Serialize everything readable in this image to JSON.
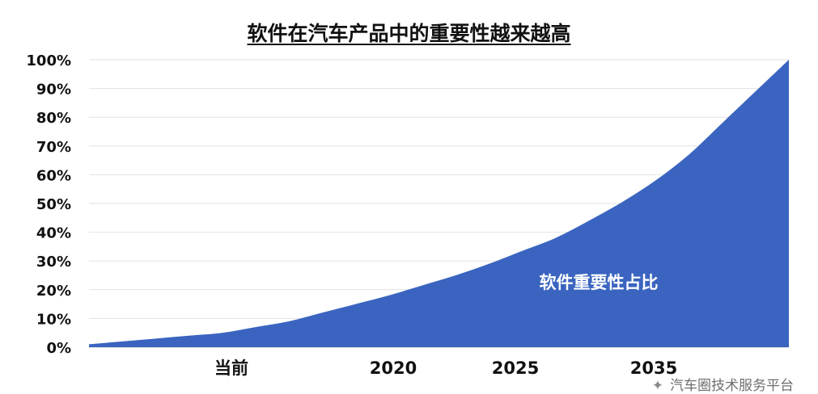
{
  "chart_data": {
    "type": "area",
    "title": "软件在汽车产品中的重要性越来越高",
    "xlabel": "",
    "ylabel": "",
    "x_tick_labels": [
      "当前",
      "2020",
      "2025",
      "2035"
    ],
    "y_ticks": [
      "0%",
      "10%",
      "20%",
      "30%",
      "40%",
      "50%",
      "60%",
      "70%",
      "80%",
      "90%",
      "100%"
    ],
    "ylim": [
      0,
      100
    ],
    "grid": true,
    "series": [
      {
        "name": "软件重要性占比",
        "color": "#3a64c0",
        "values": [
          1,
          2,
          3,
          4,
          5,
          7,
          9,
          12,
          15,
          18,
          21.5,
          25,
          29,
          33.5,
          38,
          44,
          50.5,
          58,
          67,
          78,
          89,
          100
        ]
      }
    ],
    "annotation": "软件重要性占比"
  },
  "watermark": {
    "text": "汽车圈技术服务平台"
  }
}
